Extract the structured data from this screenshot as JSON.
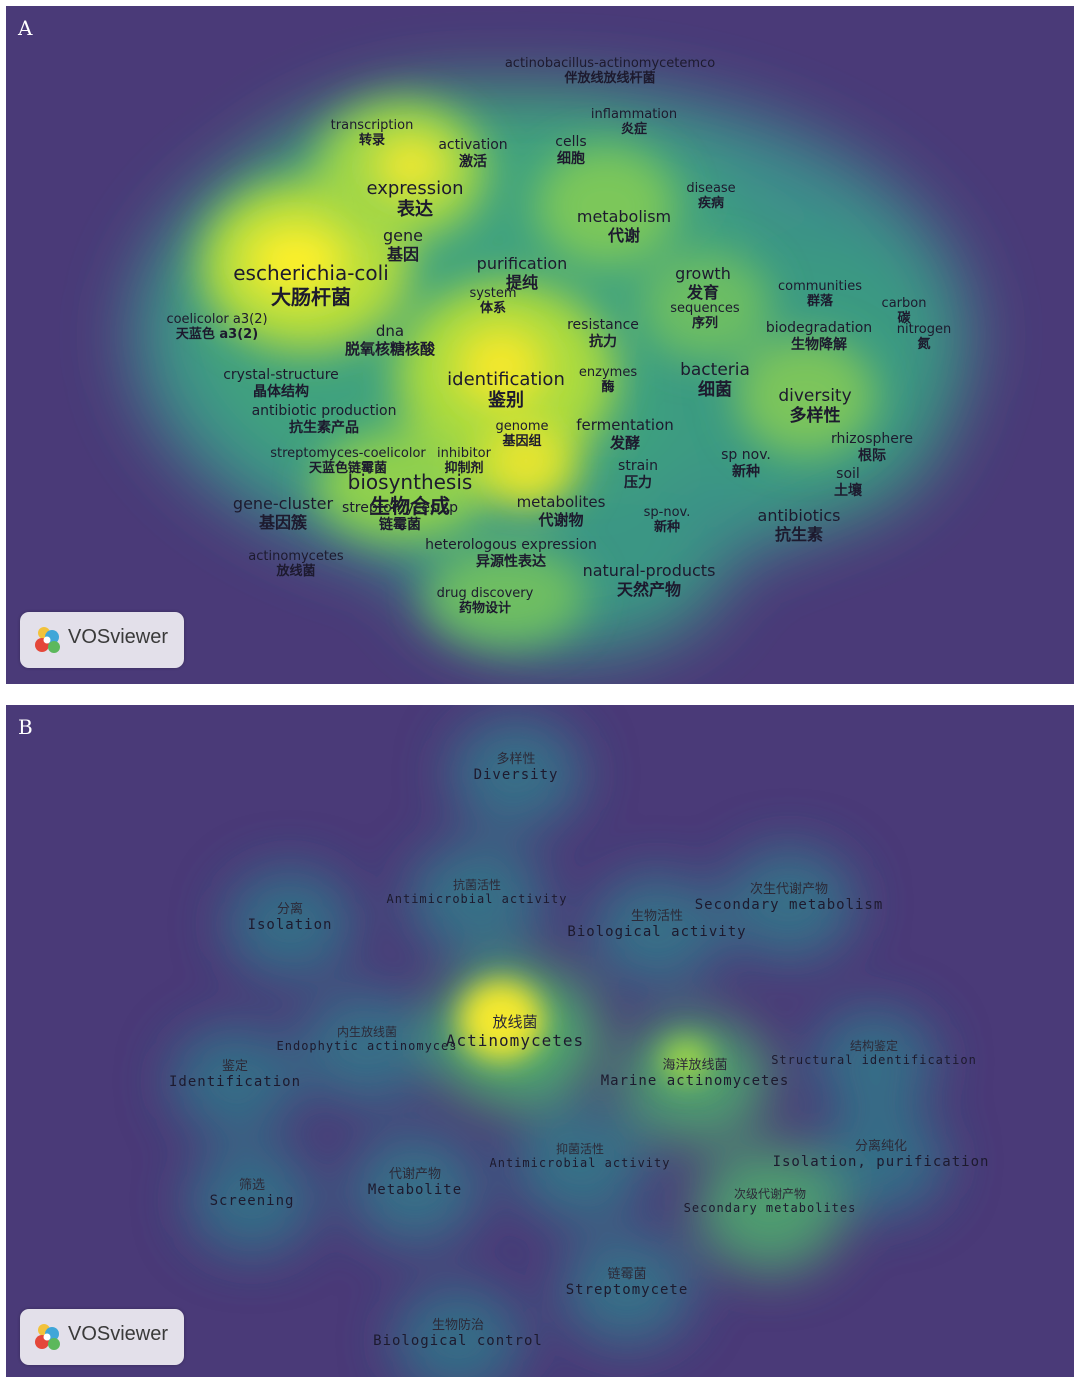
{
  "brand": "VOSviewer",
  "colors": {
    "background": "#4a3a78",
    "low": "#2e7f8a",
    "mid": "#56c36a",
    "high": "#ffe830"
  },
  "panels": [
    {
      "letter": "A",
      "terms": [
        {
          "en": "actinobacillus-actinomycetemco",
          "zh": "伴放线放线杆菌",
          "size": 13,
          "w": 0.35
        },
        {
          "en": "inflammation",
          "zh": "炎症",
          "size": 13,
          "w": 0.4
        },
        {
          "en": "transcription",
          "zh": "转录",
          "size": 13,
          "w": 0.55
        },
        {
          "en": "activation",
          "zh": "激活",
          "size": 14,
          "w": 0.5
        },
        {
          "en": "cells",
          "zh": "细胞",
          "size": 14,
          "w": 0.45
        },
        {
          "en": "disease",
          "zh": "疾病",
          "size": 13,
          "w": 0.4
        },
        {
          "en": "expression",
          "zh": "表达",
          "size": 18,
          "w": 0.9
        },
        {
          "en": "metabolism",
          "zh": "代谢",
          "size": 16,
          "w": 0.65
        },
        {
          "en": "gene",
          "zh": "基因",
          "size": 16,
          "w": 0.75
        },
        {
          "en": "escherichia-coli",
          "zh": "大肠杆菌",
          "size": 20,
          "w": 1.0
        },
        {
          "en": "purification",
          "zh": "提纯",
          "size": 16,
          "w": 0.7
        },
        {
          "en": "system",
          "zh": "体系",
          "size": 13,
          "w": 0.5
        },
        {
          "en": "growth",
          "zh": "发育",
          "size": 16,
          "w": 0.65
        },
        {
          "en": "sequences",
          "zh": "序列",
          "size": 13,
          "w": 0.5
        },
        {
          "en": "communities",
          "zh": "群落",
          "size": 13,
          "w": 0.45
        },
        {
          "en": "carbon",
          "zh": "碳",
          "size": 13,
          "w": 0.4
        },
        {
          "en": "biodegradation",
          "zh": "生物降解",
          "size": 14,
          "w": 0.45
        },
        {
          "en": "nitrogen",
          "zh": "氮",
          "size": 13,
          "w": 0.4
        },
        {
          "en": "coelicolor a3(2)",
          "zh": "天蓝色 a3(2)",
          "size": 13,
          "w": 0.5
        },
        {
          "en": "dna",
          "zh": "脱氧核糖核酸",
          "size": 15,
          "w": 0.6
        },
        {
          "en": "resistance",
          "zh": "抗力",
          "size": 14,
          "w": 0.6
        },
        {
          "en": "crystal-structure",
          "zh": "晶体结构",
          "size": 14,
          "w": 0.55
        },
        {
          "en": "identification",
          "zh": "鉴别",
          "size": 18,
          "w": 0.95
        },
        {
          "en": "enzymes",
          "zh": "酶",
          "size": 13,
          "w": 0.6
        },
        {
          "en": "bacteria",
          "zh": "细菌",
          "size": 17,
          "w": 0.6
        },
        {
          "en": "diversity",
          "zh": "多样性",
          "size": 17,
          "w": 0.7
        },
        {
          "en": "antibiotic production",
          "zh": "抗生素产品",
          "size": 14,
          "w": 0.6
        },
        {
          "en": "genome",
          "zh": "基因组",
          "size": 13,
          "w": 0.65
        },
        {
          "en": "fermentation",
          "zh": "发酵",
          "size": 15,
          "w": 0.55
        },
        {
          "en": "rhizosphere",
          "zh": "根际",
          "size": 14,
          "w": 0.45
        },
        {
          "en": "streptomyces-coelicolor",
          "zh": "天蓝色链霉菌",
          "size": 13,
          "w": 0.6
        },
        {
          "en": "inhibitor",
          "zh": "抑制剂",
          "size": 13,
          "w": 0.55
        },
        {
          "en": "biosynthesis",
          "zh": "生物合成",
          "size": 20,
          "w": 1.0
        },
        {
          "en": "strain",
          "zh": "压力",
          "size": 14,
          "w": 0.6
        },
        {
          "en": "sp nov.",
          "zh": "新种",
          "size": 14,
          "w": 0.45
        },
        {
          "en": "soil",
          "zh": "土壤",
          "size": 14,
          "w": 0.45
        },
        {
          "en": "gene-cluster",
          "zh": "基因簇",
          "size": 16,
          "w": 0.55
        },
        {
          "en": "streptomyces sp",
          "zh": "链霉菌",
          "size": 14,
          "w": 0.8
        },
        {
          "en": "metabolites",
          "zh": "代谢物",
          "size": 15,
          "w": 0.55
        },
        {
          "en": "sp-nov.",
          "zh": "新种",
          "size": 13,
          "w": 0.4
        },
        {
          "en": "antibiotics",
          "zh": "抗生素",
          "size": 16,
          "w": 0.75
        },
        {
          "en": "heterologous expression",
          "zh": "异源性表达",
          "size": 14,
          "w": 0.5
        },
        {
          "en": "actinomycetes",
          "zh": "放线菌",
          "size": 13,
          "w": 0.5
        },
        {
          "en": "natural-products",
          "zh": "天然产物",
          "size": 16,
          "w": 0.75
        },
        {
          "en": "drug discovery",
          "zh": "药物设计",
          "size": 13,
          "w": 0.55
        }
      ]
    },
    {
      "letter": "B",
      "terms": [
        {
          "zh": "多样性",
          "en": "Diversity",
          "size": 14,
          "w": 0.55
        },
        {
          "zh": "抗菌活性",
          "en": "Antimicrobial activity",
          "size": 12,
          "w": 0.6
        },
        {
          "zh": "分离",
          "en": "Isolation",
          "size": 14,
          "w": 0.5
        },
        {
          "zh": "次生代谢产物",
          "en": "Secondary metabolism",
          "size": 14,
          "w": 0.55
        },
        {
          "zh": "生物活性",
          "en": "Biological activity",
          "size": 14,
          "w": 0.55
        },
        {
          "zh": "放线菌",
          "en": "Actinomycetes",
          "size": 16,
          "w": 1.0
        },
        {
          "zh": "内生放线菌",
          "en": "Endophytic actinomyces",
          "size": 12,
          "w": 0.55
        },
        {
          "zh": "鉴定",
          "en": "Identification",
          "size": 14,
          "w": 0.5
        },
        {
          "zh": "结构鉴定",
          "en": "Structural identification",
          "size": 12,
          "w": 0.45
        },
        {
          "zh": "海洋放线菌",
          "en": "Marine actinomycetes",
          "size": 14,
          "w": 0.75
        },
        {
          "zh": "分离纯化",
          "en": "Isolation, purification",
          "size": 14,
          "w": 0.5
        },
        {
          "zh": "抑菌活性",
          "en": "Antimicrobial activity",
          "size": 12,
          "w": 0.6
        },
        {
          "zh": "代谢产物",
          "en": "Metabolite",
          "size": 14,
          "w": 0.55
        },
        {
          "zh": "筛选",
          "en": "Screening",
          "size": 14,
          "w": 0.5
        },
        {
          "zh": "次级代谢产物",
          "en": "Secondary metabolites",
          "size": 12,
          "w": 0.75
        },
        {
          "zh": "链霉菌",
          "en": "Streptomycete",
          "size": 14,
          "w": 0.55
        },
        {
          "zh": "生物防治",
          "en": "Biological control",
          "size": 14,
          "w": 0.5
        }
      ]
    }
  ]
}
